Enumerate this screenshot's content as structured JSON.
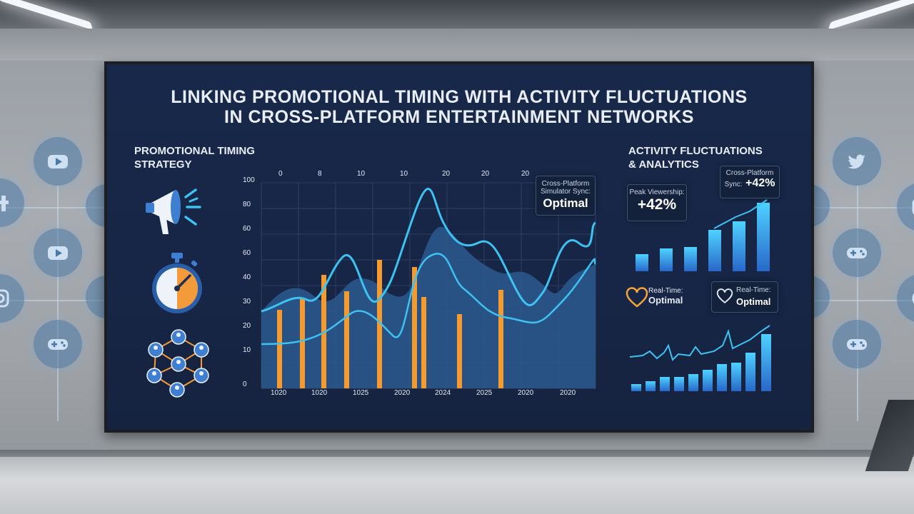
{
  "title": {
    "line1": "LINKING PROMOTIONAL TIMING WITH ACTIVITY FLUCTUATIONS",
    "line2": "IN CROSS-PLATFORM ENTERTAINMENT NETWORKS"
  },
  "left_panel": {
    "heading_line1": "PROMOTIONAL TIMING",
    "heading_line2": "STRATEGY",
    "icons": [
      "megaphone-icon",
      "stopwatch-icon",
      "network-icon"
    ]
  },
  "center_chart": {
    "top_ticks": [
      "0",
      "8",
      "10",
      "10",
      "20",
      "20",
      "20"
    ],
    "y_ticks": [
      "100",
      "80",
      "60",
      "60",
      "40",
      "30",
      "20",
      "10",
      "0"
    ],
    "x_ticks": [
      "1020",
      "1020",
      "1025",
      "2020",
      "2024",
      "2025",
      "2020",
      "2020"
    ],
    "callout_line1": "Cross-Platform",
    "callout_line2": "Simulator Sync:",
    "callout_value": "Optimal",
    "colors": {
      "bars": "#f59a2e",
      "lines": "#3ec2f2",
      "area": "#2c5b8f"
    }
  },
  "right_panel": {
    "heading_line1": "ACTIVITY FLUCTUATIONS",
    "heading_line2": "& ANALYTICS",
    "peak_label": "Peak Viewership:",
    "peak_value": "+42%",
    "sync_label": "Cross-Platform",
    "sync_sub": "Sync:",
    "sync_value": "+42%",
    "realtime_label_1": "Real-Time:",
    "realtime_value_1": "Optimal",
    "realtime_label_2": "Real-Time:",
    "realtime_value_2": "Optimal"
  },
  "side_icons_left": [
    "youtube-icon",
    "facebook-icon",
    "youtube-icon",
    "instagram-icon",
    "gamepad-icon"
  ],
  "side_icons_right": [
    "twitter-icon",
    "instagram-icon",
    "gamepad-icon",
    "globe-icon",
    "gamepad-icon"
  ]
}
